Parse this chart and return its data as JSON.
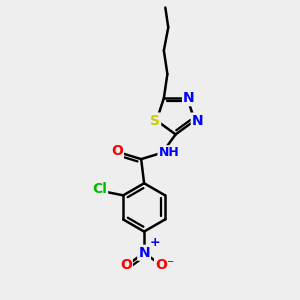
{
  "bg_color": "#eeeeee",
  "bond_color": "#000000",
  "bond_width": 1.8,
  "atom_colors": {
    "S": "#cccc00",
    "N": "#0000ff",
    "O": "#ff0000",
    "Cl": "#00bb00",
    "C": "#000000",
    "H": "#4444aa"
  },
  "font_size": 10,
  "fig_width": 3.0,
  "fig_height": 3.0,
  "dpi": 100
}
